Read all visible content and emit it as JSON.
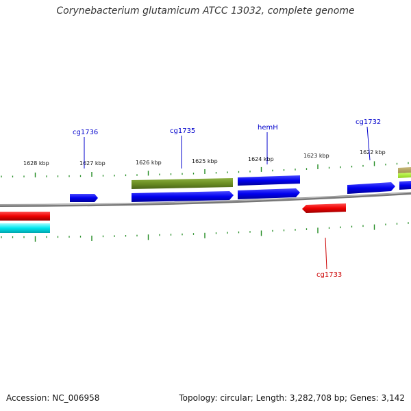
{
  "title": "Corynebacterium glutamicum ATCC 13032, complete genome",
  "accession_text": "Accession: NC_006958",
  "summary_text": "Topology: circular; Length: 3,282,708 bp; Genes: 3,142",
  "ticks": [
    {
      "label": "1628 kbp"
    },
    {
      "label": "1627 kbp"
    },
    {
      "label": "1626 kbp"
    },
    {
      "label": "1625 kbp"
    },
    {
      "label": "1624 kbp"
    },
    {
      "label": "1623 kbp"
    },
    {
      "label": "1622 kbp"
    }
  ],
  "gene_labels": [
    {
      "name": "cg1736",
      "color": "#0000cc"
    },
    {
      "name": "cg1735",
      "color": "#0000cc"
    },
    {
      "name": "hemH",
      "color": "#0000cc"
    },
    {
      "name": "cg1732",
      "color": "#0000cc"
    },
    {
      "name": "cg1733",
      "color": "#cc0000"
    }
  ],
  "colors": {
    "forward_cds": "#0000ee",
    "reverse_cds": "#ee0000",
    "olive_feature": "#6b8e23",
    "cyan_feature": "#00e5ee",
    "tick_green": "#228b22",
    "backbone": "#888888"
  }
}
